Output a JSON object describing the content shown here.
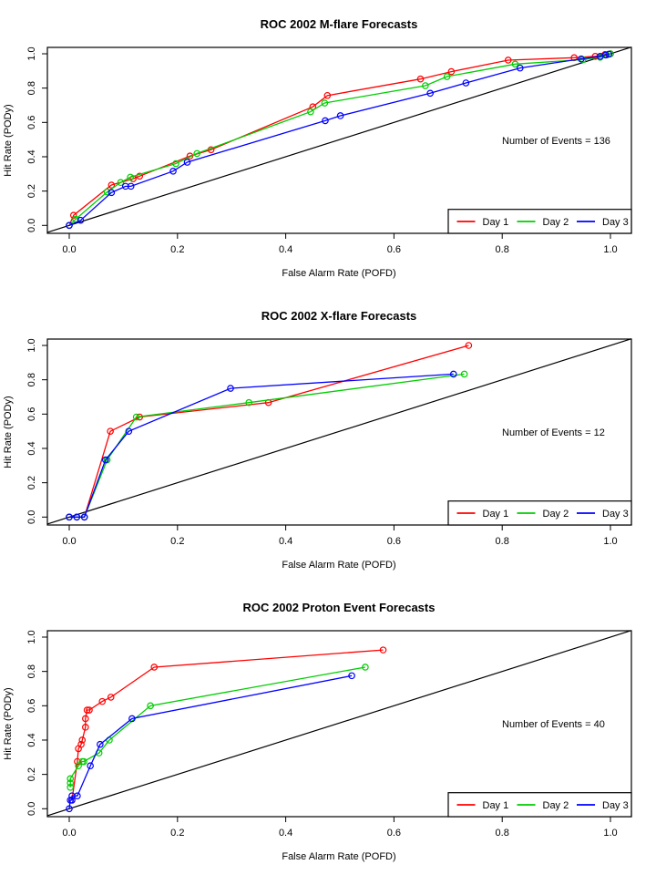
{
  "legend": {
    "labels": [
      "Day 1",
      "Day 2",
      "Day 3"
    ],
    "colors": [
      "#ff0000",
      "#00cd00",
      "#0000ff"
    ],
    "placement": "bottom-right"
  },
  "chart_data": [
    {
      "type": "line",
      "title": "ROC  2002 M-flare Forecasts",
      "xlabel": "False Alarm Rate (POFD)",
      "ylabel": "Hit Rate (PODy)",
      "xlim": [
        0,
        1
      ],
      "ylim": [
        0,
        1
      ],
      "xticks": [
        "0.0",
        "0.2",
        "0.4",
        "0.6",
        "0.8",
        "1.0"
      ],
      "yticks": [
        "0.0",
        "0.2",
        "0.4",
        "0.6",
        "0.8",
        "1.0"
      ],
      "grid": false,
      "diagonal": true,
      "annotation": "Number of Events =  136",
      "series": [
        {
          "name": "Day 1",
          "color": "#ff0000",
          "x": [
            0,
            0.008,
            0.078,
            0.118,
            0.13,
            0.223,
            0.262,
            0.45,
            0.477,
            0.649,
            0.706,
            0.811,
            0.933,
            0.972,
            0.99,
            1.0
          ],
          "y": [
            0,
            0.059,
            0.235,
            0.272,
            0.287,
            0.404,
            0.441,
            0.691,
            0.757,
            0.853,
            0.896,
            0.963,
            0.977,
            0.985,
            0.996,
            1.0
          ]
        },
        {
          "name": "Day 2",
          "color": "#00cd00",
          "x": [
            0,
            0.012,
            0.07,
            0.095,
            0.113,
            0.197,
            0.236,
            0.446,
            0.472,
            0.658,
            0.698,
            0.824,
            0.949,
            0.981,
            0.993,
            1.0
          ],
          "y": [
            0,
            0.036,
            0.195,
            0.25,
            0.281,
            0.36,
            0.419,
            0.662,
            0.713,
            0.814,
            0.867,
            0.94,
            0.966,
            0.98,
            0.993,
            1.0
          ]
        },
        {
          "name": "Day 3",
          "color": "#0000ff",
          "x": [
            0,
            0.021,
            0.078,
            0.104,
            0.114,
            0.192,
            0.218,
            0.473,
            0.501,
            0.667,
            0.733,
            0.833,
            0.946,
            0.981,
            0.991,
            0.997
          ],
          "y": [
            0,
            0.03,
            0.191,
            0.228,
            0.228,
            0.316,
            0.368,
            0.61,
            0.639,
            0.77,
            0.83,
            0.917,
            0.97,
            0.985,
            0.993,
            0.998
          ]
        }
      ]
    },
    {
      "type": "line",
      "title": "ROC  2002 X-flare Forecasts",
      "xlabel": "False Alarm Rate (POFD)",
      "ylabel": "Hit Rate (PODy)",
      "xlim": [
        0,
        1
      ],
      "ylim": [
        0,
        1
      ],
      "xticks": [
        "0.0",
        "0.2",
        "0.4",
        "0.6",
        "0.8",
        "1.0"
      ],
      "yticks": [
        "0.0",
        "0.2",
        "0.4",
        "0.6",
        "0.8",
        "1.0"
      ],
      "grid": false,
      "diagonal": true,
      "annotation": "Number of Events =  12",
      "series": [
        {
          "name": "Day 1",
          "color": "#ff0000",
          "x": [
            0,
            0.014,
            0.028,
            0.076,
            0.13,
            0.368,
            0.738
          ],
          "y": [
            0,
            0,
            0,
            0.5,
            0.583,
            0.667,
            1.0
          ]
        },
        {
          "name": "Day 2",
          "color": "#00cd00",
          "x": [
            0,
            0.014,
            0.028,
            0.07,
            0.124,
            0.332,
            0.73
          ],
          "y": [
            0,
            0,
            0,
            0.333,
            0.583,
            0.667,
            0.833
          ]
        },
        {
          "name": "Day 3",
          "color": "#0000ff",
          "x": [
            0,
            0.014,
            0.028,
            0.067,
            0.11,
            0.298,
            0.71
          ],
          "y": [
            0,
            0,
            0,
            0.333,
            0.5,
            0.75,
            0.833
          ]
        }
      ]
    },
    {
      "type": "line",
      "title": "ROC  2002 Proton Event Forecasts",
      "xlabel": "False Alarm Rate (POFD)",
      "ylabel": "Hit Rate (PODy)",
      "xlim": [
        0,
        1
      ],
      "ylim": [
        0,
        1
      ],
      "xticks": [
        "0.0",
        "0.2",
        "0.4",
        "0.6",
        "0.8",
        "1.0"
      ],
      "yticks": [
        "0.0",
        "0.2",
        "0.4",
        "0.6",
        "0.8",
        "1.0"
      ],
      "grid": false,
      "diagonal": true,
      "annotation": "Number of Events =  40",
      "series": [
        {
          "name": "Day 1",
          "color": "#ff0000",
          "x": [
            0.005,
            0.015,
            0.017,
            0.022,
            0.024,
            0.03,
            0.03,
            0.033,
            0.037,
            0.061,
            0.077,
            0.157,
            0.58
          ],
          "y": [
            0.05,
            0.275,
            0.35,
            0.375,
            0.4,
            0.475,
            0.525,
            0.575,
            0.575,
            0.625,
            0.65,
            0.825,
            0.925
          ]
        },
        {
          "name": "Day 2",
          "color": "#00cd00",
          "x": [
            0.002,
            0.002,
            0.002,
            0.017,
            0.024,
            0.027,
            0.055,
            0.074,
            0.15,
            0.547
          ],
          "y": [
            0.125,
            0.15,
            0.175,
            0.25,
            0.275,
            0.275,
            0.325,
            0.4,
            0.6,
            0.825
          ]
        },
        {
          "name": "Day 3",
          "color": "#0000ff",
          "x": [
            0,
            0.002,
            0.005,
            0.005,
            0.015,
            0.039,
            0.057,
            0.116,
            0.522
          ],
          "y": [
            0,
            0.05,
            0.05,
            0.075,
            0.075,
            0.25,
            0.375,
            0.525,
            0.775
          ]
        }
      ]
    }
  ]
}
